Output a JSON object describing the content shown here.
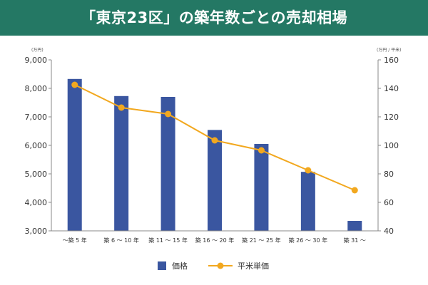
{
  "title": "「東京23区」の築年数ごとの売却相場",
  "colors": {
    "header": "#247864",
    "bar": "#3a56a0",
    "line": "#f2a81f",
    "axis": "#888888"
  },
  "chart_data": {
    "type": "bar+line",
    "categories": [
      "～築 5 年",
      "築 6 ～ 10 年",
      "築 11 ～ 15 年",
      "築 16 ～ 20 年",
      "築 21 ～ 25 年",
      "築 26 ～ 30 年",
      "築 31 ～"
    ],
    "series": [
      {
        "name": "価格",
        "type": "bar",
        "axis": "left",
        "values": [
          8330,
          7730,
          7700,
          6540,
          6050,
          5070,
          3350
        ]
      },
      {
        "name": "平米単価",
        "type": "line",
        "axis": "right",
        "values": [
          142.5,
          126.5,
          122,
          103.5,
          96.5,
          82.5,
          68.5
        ]
      }
    ],
    "y_left": {
      "unit": "(万円)",
      "min": 3000,
      "max": 9000,
      "ticks": [
        "3,000",
        "4,000",
        "5,000",
        "6,000",
        "7,000",
        "8,000",
        "9,000"
      ]
    },
    "y_right": {
      "unit": "(万円 / 平米)",
      "min": 40,
      "max": 160,
      "ticks": [
        "40",
        "60",
        "80",
        "100",
        "120",
        "140",
        "160"
      ]
    },
    "legend_position": "bottom-center",
    "grid": false
  }
}
